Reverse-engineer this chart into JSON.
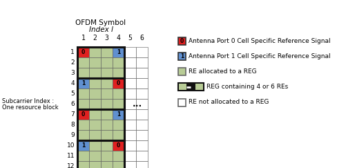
{
  "title_line1": "OFDM Symbol",
  "title_line2": "Index l",
  "col_labels": [
    "1",
    "2",
    "3",
    "4",
    "5",
    "6"
  ],
  "row_labels": [
    "1",
    "2",
    "3",
    "4",
    "5",
    "6",
    "7",
    "8",
    "9",
    "10",
    "11",
    "12"
  ],
  "num_rows": 12,
  "num_cols": 6,
  "cell_colors": [
    [
      "red",
      "green",
      "green",
      "blue",
      "white",
      "white"
    ],
    [
      "green",
      "green",
      "green",
      "green",
      "white",
      "white"
    ],
    [
      "green",
      "green",
      "green",
      "green",
      "white",
      "white"
    ],
    [
      "blue",
      "green",
      "green",
      "red",
      "white",
      "white"
    ],
    [
      "green",
      "green",
      "green",
      "green",
      "white",
      "white"
    ],
    [
      "green",
      "green",
      "green",
      "green",
      "white",
      "white"
    ],
    [
      "red",
      "green",
      "green",
      "blue",
      "white",
      "white"
    ],
    [
      "green",
      "green",
      "green",
      "green",
      "white",
      "white"
    ],
    [
      "green",
      "green",
      "green",
      "green",
      "white",
      "white"
    ],
    [
      "blue",
      "green",
      "green",
      "red",
      "white",
      "white"
    ],
    [
      "green",
      "green",
      "green",
      "green",
      "white",
      "white"
    ],
    [
      "green",
      "green",
      "green",
      "green",
      "white",
      "white"
    ]
  ],
  "cell_texts": [
    [
      "0",
      "",
      "",
      "1",
      "",
      ""
    ],
    [
      "",
      "",
      "",
      "",
      "",
      ""
    ],
    [
      "",
      "",
      "",
      "",
      "",
      ""
    ],
    [
      "1",
      "",
      "",
      "0",
      "",
      ""
    ],
    [
      "",
      "",
      "",
      "",
      "",
      ""
    ],
    [
      "",
      "",
      "",
      "",
      "",
      ""
    ],
    [
      "0",
      "",
      "",
      "1",
      "",
      ""
    ],
    [
      "",
      "",
      "",
      "",
      "",
      ""
    ],
    [
      "",
      "",
      "",
      "",
      "",
      ""
    ],
    [
      "1",
      "",
      "",
      "0",
      "",
      ""
    ],
    [
      "",
      "",
      "",
      "",
      "",
      ""
    ],
    [
      "",
      "",
      "",
      "",
      "",
      ""
    ]
  ],
  "color_red": "#e02020",
  "color_blue": "#6090d0",
  "color_green": "#b8cc96",
  "color_white": "#ffffff",
  "left_label_top": "Subcarrier Index :",
  "left_label_bot": "One resource block",
  "dots_text": "...",
  "legend": [
    {
      "color": "#e02020",
      "border": "#333333",
      "text_num": "0",
      "label": "Antenna Port 0 Cell Specific Reference Signal"
    },
    {
      "color": "#6090d0",
      "border": "#333333",
      "text_num": "1",
      "label": "Antenna Port 1 Cell Specific Reference Signal"
    },
    {
      "color": "#b8cc96",
      "border": "#666666",
      "text_num": "",
      "label": "RE allocated to a REG"
    },
    {
      "color": "#b8cc96",
      "border": "#111111",
      "text_num": "",
      "label": "REG containing 4 or 6 REs"
    },
    {
      "color": "#ffffff",
      "border": "#666666",
      "text_num": "",
      "label": "RE not allocated to a REG"
    }
  ]
}
